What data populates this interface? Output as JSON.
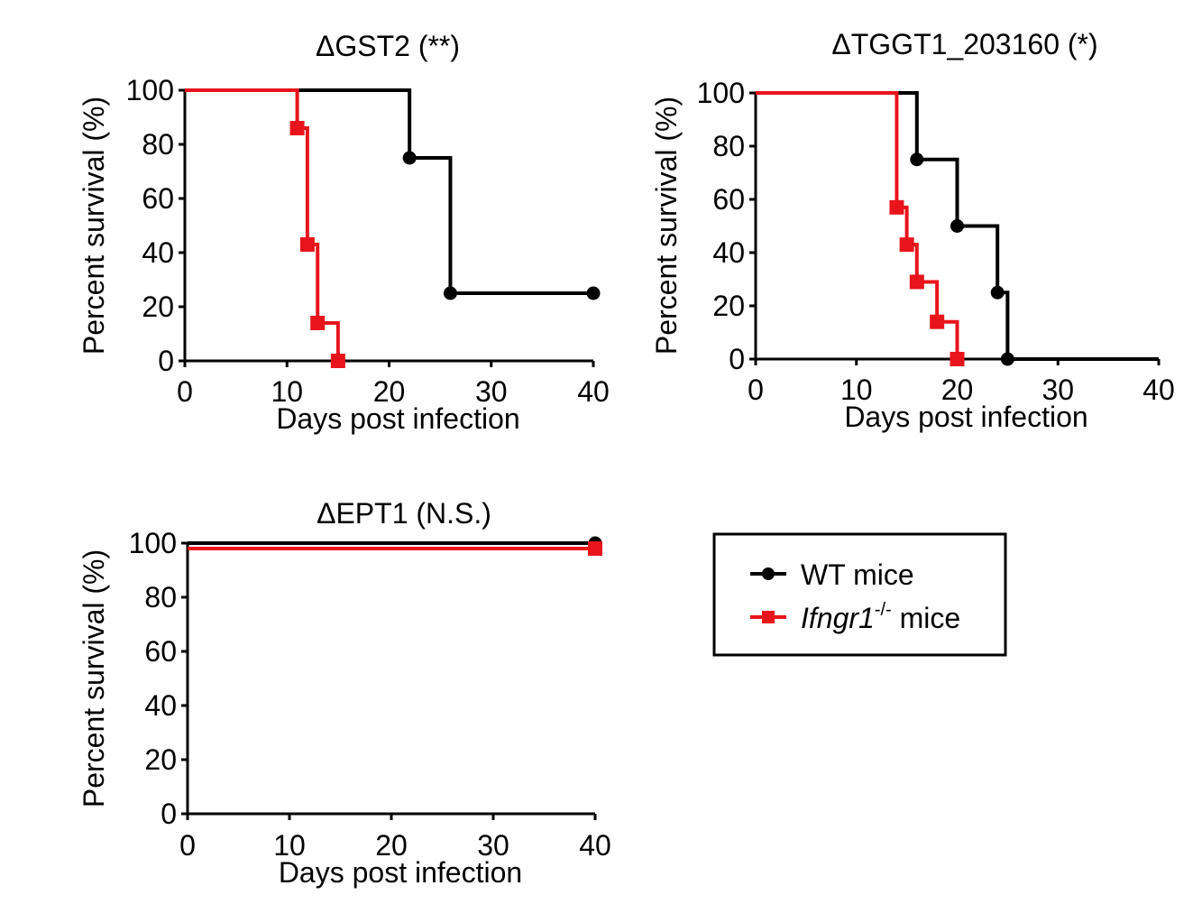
{
  "chart_data": [
    {
      "type": "line",
      "subtype": "kaplan-meier-survival",
      "title": "ΔGST2 (**)",
      "xlabel": "Days post infection",
      "ylabel": "Percent survival (%)",
      "xlim": [
        0,
        40
      ],
      "ylim": [
        0,
        100
      ],
      "xticks": [
        "0",
        "10",
        "20",
        "30",
        "40"
      ],
      "yticks": [
        "0",
        "20",
        "40",
        "60",
        "80",
        "100"
      ],
      "series": [
        {
          "name": "WT mice",
          "color": "#000000",
          "marker": "circle",
          "steps": [
            [
              0,
              100
            ],
            [
              22,
              75
            ],
            [
              26,
              25
            ],
            [
              40,
              25
            ]
          ],
          "points": [
            [
              22,
              75
            ],
            [
              26,
              25
            ],
            [
              40,
              25
            ]
          ]
        },
        {
          "name": "Ifngr1-/- mice",
          "color": "#e8141c",
          "marker": "square",
          "steps": [
            [
              0,
              100
            ],
            [
              11,
              86
            ],
            [
              12,
              43
            ],
            [
              13,
              14
            ],
            [
              15,
              0
            ]
          ],
          "points": [
            [
              11,
              86
            ],
            [
              12,
              43
            ],
            [
              13,
              14
            ],
            [
              15,
              0
            ]
          ]
        }
      ]
    },
    {
      "type": "line",
      "subtype": "kaplan-meier-survival",
      "title": "ΔTGGT1_203160 (*)",
      "xlabel": "Days post infection",
      "ylabel": "Percent survival (%)",
      "xlim": [
        0,
        40
      ],
      "ylim": [
        0,
        100
      ],
      "xticks": [
        "0",
        "10",
        "20",
        "30",
        "40"
      ],
      "yticks": [
        "0",
        "20",
        "40",
        "60",
        "80",
        "100"
      ],
      "series": [
        {
          "name": "WT mice",
          "color": "#000000",
          "marker": "circle",
          "steps": [
            [
              0,
              100
            ],
            [
              16,
              75
            ],
            [
              20,
              50
            ],
            [
              24,
              25
            ],
            [
              25,
              0
            ],
            [
              40,
              0
            ]
          ],
          "points": [
            [
              16,
              75
            ],
            [
              20,
              50
            ],
            [
              24,
              25
            ],
            [
              25,
              0
            ]
          ]
        },
        {
          "name": "Ifngr1-/- mice",
          "color": "#e8141c",
          "marker": "square",
          "steps": [
            [
              0,
              100
            ],
            [
              14,
              57
            ],
            [
              15,
              43
            ],
            [
              16,
              29
            ],
            [
              18,
              14
            ],
            [
              20,
              0
            ]
          ],
          "points": [
            [
              14,
              57
            ],
            [
              15,
              43
            ],
            [
              16,
              29
            ],
            [
              18,
              14
            ],
            [
              20,
              0
            ]
          ]
        }
      ]
    },
    {
      "type": "line",
      "subtype": "kaplan-meier-survival",
      "title": "ΔEPT1 (N.S.)",
      "xlabel": "Days post infection",
      "ylabel": "Percent survival (%)",
      "xlim": [
        0,
        40
      ],
      "ylim": [
        0,
        100
      ],
      "xticks": [
        "0",
        "10",
        "20",
        "30",
        "40"
      ],
      "yticks": [
        "0",
        "20",
        "40",
        "60",
        "80",
        "100"
      ],
      "series": [
        {
          "name": "WT mice",
          "color": "#000000",
          "marker": "circle",
          "steps": [
            [
              0,
              100
            ],
            [
              40,
              100
            ]
          ],
          "points": [
            [
              40,
              100
            ]
          ]
        },
        {
          "name": "Ifngr1-/- mice",
          "color": "#e8141c",
          "marker": "square",
          "steps": [
            [
              0,
              98
            ],
            [
              40,
              98
            ]
          ],
          "points": [
            [
              40,
              98
            ]
          ]
        }
      ]
    }
  ],
  "legend": {
    "items": [
      {
        "label": "WT mice",
        "color": "#000000",
        "marker": "circle"
      },
      {
        "label_italic": "Ifngr1",
        "label_sup": "-/-",
        "label_rest": " mice",
        "color": "#e8141c",
        "marker": "square"
      }
    ]
  }
}
